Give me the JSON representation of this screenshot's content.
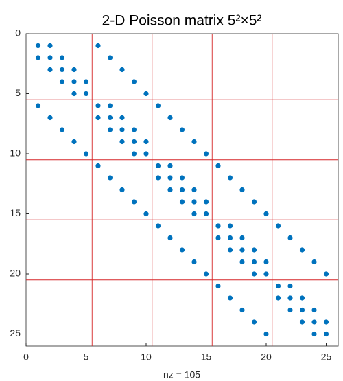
{
  "chart_data": {
    "type": "scatter",
    "title": "2-D Poisson matrix 5²×5²",
    "xlabel": "nz = 105",
    "x": [
      1,
      2,
      6,
      1,
      2,
      3,
      7,
      2,
      3,
      4,
      8,
      3,
      4,
      5,
      9,
      4,
      5,
      10,
      1,
      6,
      7,
      11,
      2,
      6,
      7,
      8,
      12,
      3,
      7,
      8,
      9,
      13,
      4,
      8,
      9,
      10,
      14,
      5,
      9,
      10,
      15,
      6,
      11,
      12,
      16,
      7,
      11,
      12,
      13,
      17,
      8,
      12,
      13,
      14,
      18,
      9,
      13,
      14,
      15,
      19,
      10,
      14,
      15,
      20,
      11,
      16,
      17,
      21,
      12,
      16,
      17,
      18,
      22,
      13,
      17,
      18,
      19,
      23,
      14,
      18,
      19,
      20,
      24,
      15,
      19,
      20,
      25,
      16,
      21,
      22,
      17,
      21,
      22,
      23,
      18,
      22,
      23,
      24,
      19,
      23,
      24,
      25,
      20,
      24,
      25
    ],
    "series": [
      {
        "color": "#0072bd",
        "values": [
          1,
          1,
          1,
          2,
          2,
          2,
          2,
          3,
          3,
          3,
          3,
          4,
          4,
          4,
          4,
          5,
          5,
          5,
          6,
          6,
          6,
          6,
          7,
          7,
          7,
          7,
          7,
          8,
          8,
          8,
          8,
          8,
          9,
          9,
          9,
          9,
          9,
          10,
          10,
          10,
          10,
          11,
          11,
          11,
          11,
          12,
          12,
          12,
          12,
          12,
          13,
          13,
          13,
          13,
          13,
          14,
          14,
          14,
          14,
          14,
          15,
          15,
          15,
          15,
          16,
          16,
          16,
          16,
          17,
          17,
          17,
          17,
          17,
          18,
          18,
          18,
          18,
          18,
          19,
          19,
          19,
          19,
          19,
          20,
          20,
          20,
          20,
          21,
          21,
          21,
          22,
          22,
          22,
          22,
          23,
          23,
          23,
          23,
          24,
          24,
          24,
          24,
          25,
          25,
          25
        ]
      }
    ],
    "xlim": [
      0,
      26
    ],
    "ylim": [
      0,
      26
    ],
    "y_reversed": true,
    "xticks": [
      0,
      5,
      10,
      15,
      20,
      25
    ],
    "yticks": [
      0,
      5,
      10,
      15,
      20,
      25
    ],
    "reference_lines": {
      "values": [
        5.5,
        10.5,
        15.5,
        20.5
      ],
      "color": "#d62728"
    }
  }
}
